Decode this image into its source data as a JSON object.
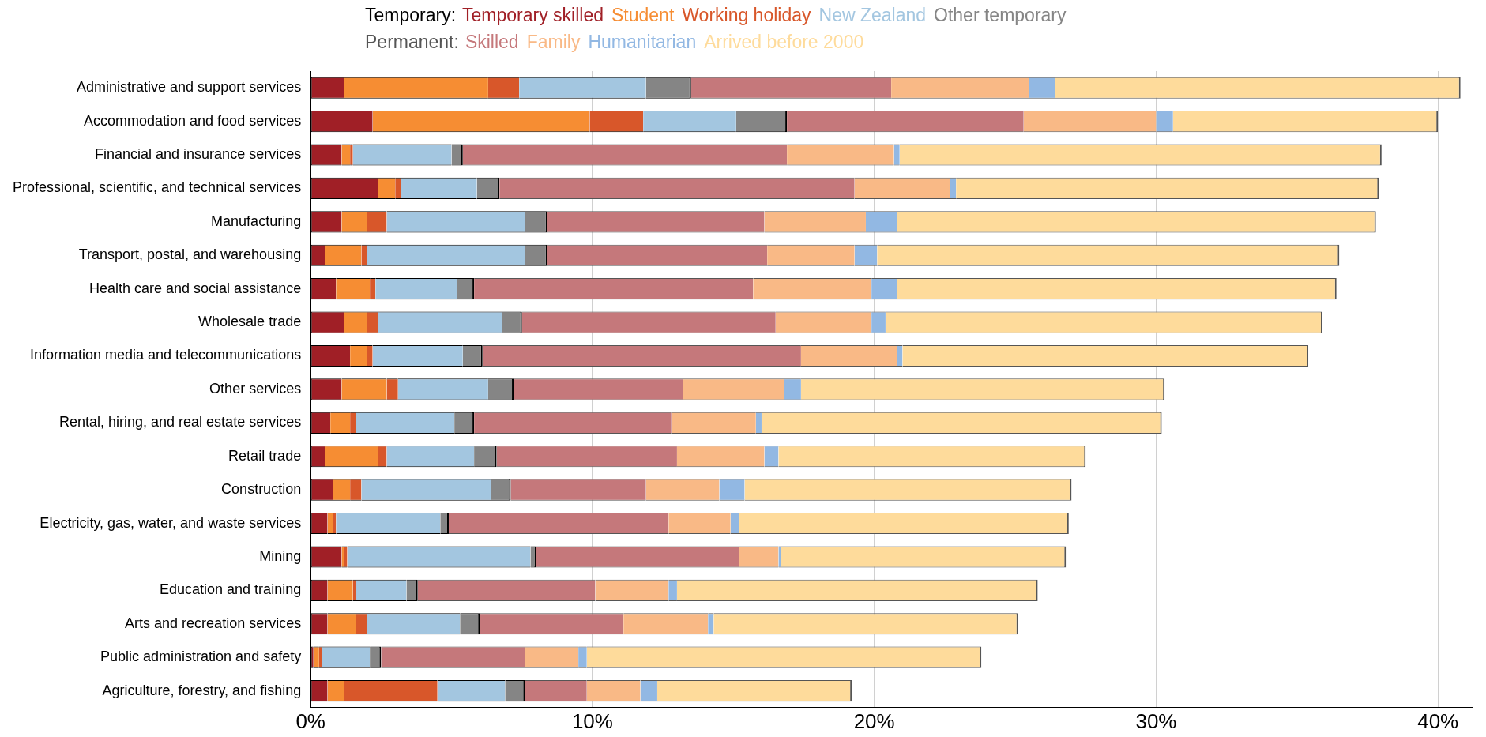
{
  "chart_data": {
    "type": "bar",
    "orientation": "horizontal",
    "stacked": true,
    "grid": "x",
    "legend": "top",
    "annotations": [
      "Temporary:",
      "Permanent:"
    ],
    "categories": [
      "Administrative and support services",
      "Accommodation and food services",
      "Financial and insurance services",
      "Professional, scientific, and technical services",
      "Manufacturing",
      "Transport, postal, and warehousing",
      "Health care and social assistance",
      "Wholesale trade",
      "Information media and telecommunications",
      "Other services",
      "Rental, hiring, and real estate services",
      "Retail trade",
      "Construction",
      "Electricity, gas, water, and waste services",
      "Mining",
      "Education and training",
      "Arts and recreation services",
      "Public administration and safety",
      "Agriculture, forestry, and fishing"
    ],
    "series": [
      {
        "name": "Temporary skilled",
        "color": "#a01f26",
        "values": [
          1.2,
          2.2,
          1.1,
          2.4,
          1.1,
          0.5,
          0.9,
          1.2,
          1.4,
          1.1,
          0.7,
          0.5,
          0.8,
          0.6,
          1.1,
          0.6,
          0.6,
          0.1,
          0.6
        ]
      },
      {
        "name": "Student",
        "color": "#f68d33",
        "values": [
          5.1,
          7.7,
          0.3,
          0.6,
          0.9,
          1.3,
          1.2,
          0.8,
          0.6,
          1.6,
          0.7,
          1.9,
          0.6,
          0.2,
          0.1,
          0.9,
          1.0,
          0.2,
          0.6
        ]
      },
      {
        "name": "Working holiday",
        "color": "#d8572a",
        "values": [
          1.1,
          1.9,
          0.1,
          0.2,
          0.7,
          0.2,
          0.2,
          0.4,
          0.2,
          0.4,
          0.2,
          0.3,
          0.4,
          0.1,
          0.1,
          0.1,
          0.4,
          0.1,
          3.3
        ]
      },
      {
        "name": "New Zealand",
        "color": "#a3c6e0",
        "values": [
          4.5,
          3.3,
          3.5,
          2.7,
          4.9,
          5.6,
          2.9,
          4.4,
          3.2,
          3.2,
          3.5,
          3.1,
          4.6,
          3.7,
          6.5,
          1.8,
          3.3,
          1.7,
          2.4
        ]
      },
      {
        "name": "Other temporary",
        "color": "#858585",
        "values": [
          1.6,
          1.8,
          0.4,
          0.8,
          0.8,
          0.8,
          0.6,
          0.7,
          0.7,
          0.9,
          0.7,
          0.8,
          0.7,
          0.3,
          0.2,
          0.4,
          0.7,
          0.4,
          0.7
        ]
      },
      {
        "name": "Skilled",
        "color": "#c5787b",
        "values": [
          7.1,
          8.4,
          11.5,
          12.6,
          7.7,
          7.8,
          9.9,
          9.0,
          11.3,
          6.0,
          7.0,
          6.4,
          4.8,
          7.8,
          7.2,
          6.3,
          5.1,
          5.1,
          2.2
        ]
      },
      {
        "name": "Family",
        "color": "#f9b986",
        "values": [
          4.9,
          4.7,
          3.8,
          3.4,
          3.6,
          3.1,
          4.2,
          3.4,
          3.4,
          3.6,
          3.0,
          3.1,
          2.6,
          2.2,
          1.4,
          2.6,
          3.0,
          1.9,
          1.9
        ]
      },
      {
        "name": "Humanitarian",
        "color": "#92b8e3",
        "values": [
          0.9,
          0.6,
          0.2,
          0.2,
          1.1,
          0.8,
          0.9,
          0.5,
          0.2,
          0.6,
          0.2,
          0.5,
          0.9,
          0.3,
          0.1,
          0.3,
          0.2,
          0.3,
          0.6
        ]
      },
      {
        "name": "Arrived before 2000",
        "color": "#fedb9b",
        "values": [
          14.4,
          9.4,
          17.1,
          15.0,
          17.0,
          16.4,
          15.6,
          15.5,
          14.4,
          12.9,
          14.2,
          10.9,
          11.6,
          11.7,
          10.1,
          12.8,
          10.8,
          14.0,
          6.9
        ]
      }
    ],
    "xlim": [
      0,
      41.2
    ],
    "xticks": [
      {
        "value": 0,
        "label": "0%"
      },
      {
        "value": 10,
        "label": "10%"
      },
      {
        "value": 20,
        "label": "20%"
      },
      {
        "value": 30,
        "label": "30%"
      },
      {
        "value": 40,
        "label": "40%"
      }
    ]
  }
}
